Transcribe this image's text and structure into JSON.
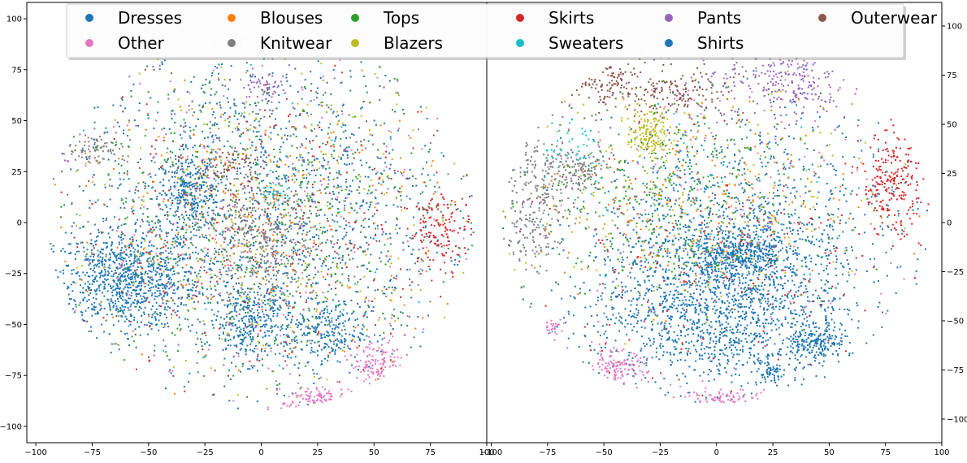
{
  "chart_data": {
    "type": "scatter",
    "legend": {
      "placement": "top",
      "columns": 6,
      "entries": [
        {
          "label": "Dresses",
          "color": "#1f77b4"
        },
        {
          "label": "Blouses",
          "color": "#ff7f0e"
        },
        {
          "label": "Tops",
          "color": "#2ca02c"
        },
        {
          "label": "Skirts",
          "color": "#d62728"
        },
        {
          "label": "Pants",
          "color": "#9467bd"
        },
        {
          "label": "Outerwear",
          "color": "#8c564b"
        },
        {
          "label": "Other",
          "color": "#e377c2"
        },
        {
          "label": "Knitwear",
          "color": "#7f7f7f"
        },
        {
          "label": "Blazers",
          "color": "#bcbd22"
        },
        {
          "label": "Sweaters",
          "color": "#17becf"
        },
        {
          "label": "Shirts",
          "color": "#1f77b4"
        }
      ]
    },
    "panels": [
      {
        "name": "left",
        "y_axis_side": "left",
        "xlim": [
          -104,
          100
        ],
        "ylim": [
          -108,
          108
        ],
        "xticks": [
          -100,
          -75,
          -50,
          -25,
          0,
          25,
          50,
          75,
          100
        ],
        "yticks": [
          -100,
          -75,
          -50,
          -25,
          0,
          25,
          50,
          75,
          100
        ],
        "clusters": [
          {
            "series": "Dresses",
            "cx": -60,
            "cy": -28,
            "sx": 16,
            "sy": 12,
            "n": 900
          },
          {
            "series": "Dresses",
            "cx": -32,
            "cy": 14,
            "sx": 6,
            "sy": 10,
            "n": 260
          },
          {
            "series": "Dresses",
            "cx": -5,
            "cy": -48,
            "sx": 9,
            "sy": 10,
            "n": 320
          },
          {
            "series": "Dresses",
            "cx": 28,
            "cy": -55,
            "sx": 9,
            "sy": 8,
            "n": 220
          },
          {
            "series": "Dresses",
            "cx": 0,
            "cy": 5,
            "sx": 42,
            "sy": 40,
            "n": 1500
          },
          {
            "series": "Other",
            "cx": 52,
            "cy": -70,
            "sx": 6,
            "sy": 6,
            "n": 140
          },
          {
            "series": "Other",
            "cx": 25,
            "cy": -87,
            "sx": 8,
            "sy": 4,
            "n": 140
          },
          {
            "series": "Other",
            "cx": 5,
            "cy": 0,
            "sx": 50,
            "sy": 40,
            "n": 220
          },
          {
            "series": "Skirts",
            "cx": 80,
            "cy": -4,
            "sx": 7,
            "sy": 9,
            "n": 130
          },
          {
            "series": "Skirts",
            "cx": 0,
            "cy": -5,
            "sx": 45,
            "sy": 38,
            "n": 260
          },
          {
            "series": "Knitwear",
            "cx": 0,
            "cy": -10,
            "sx": 12,
            "sy": 12,
            "n": 260
          },
          {
            "series": "Knitwear",
            "cx": -75,
            "cy": 37,
            "sx": 8,
            "sy": 4,
            "n": 90
          },
          {
            "series": "Knitwear",
            "cx": 0,
            "cy": 0,
            "sx": 45,
            "sy": 40,
            "n": 160
          },
          {
            "series": "Outerwear",
            "cx": -15,
            "cy": 28,
            "sx": 8,
            "sy": 5,
            "n": 80
          },
          {
            "series": "Outerwear",
            "cx": 0,
            "cy": 5,
            "sx": 45,
            "sy": 40,
            "n": 200
          },
          {
            "series": "Pants",
            "cx": 0,
            "cy": 66,
            "sx": 5,
            "sy": 4,
            "n": 60
          },
          {
            "series": "Pants",
            "cx": 0,
            "cy": 10,
            "sx": 45,
            "sy": 40,
            "n": 150
          },
          {
            "series": "Tops",
            "cx": 0,
            "cy": 0,
            "sx": 45,
            "sy": 40,
            "n": 500
          },
          {
            "series": "Blouses",
            "cx": 0,
            "cy": 0,
            "sx": 45,
            "sy": 40,
            "n": 300
          },
          {
            "series": "Blazers",
            "cx": 0,
            "cy": 5,
            "sx": 45,
            "sy": 40,
            "n": 300
          },
          {
            "series": "Sweaters",
            "cx": 5,
            "cy": 15,
            "sx": 3,
            "sy": 3,
            "n": 25
          },
          {
            "series": "Sweaters",
            "cx": 0,
            "cy": 0,
            "sx": 45,
            "sy": 40,
            "n": 60
          }
        ]
      },
      {
        "name": "right",
        "y_axis_side": "right",
        "xlim": [
          -102,
          100
        ],
        "ylim": [
          -112,
          112
        ],
        "xticks": [
          -100,
          -75,
          -50,
          -25,
          0,
          25,
          50,
          75,
          100
        ],
        "yticks": [
          -100,
          -75,
          -50,
          -25,
          0,
          25,
          50,
          75,
          100
        ],
        "clusters": [
          {
            "series": "Dresses",
            "cx": 0,
            "cy": -45,
            "sx": 28,
            "sy": 20,
            "n": 1300
          },
          {
            "series": "Dresses",
            "cx": 10,
            "cy": -15,
            "sx": 10,
            "sy": 6,
            "n": 350
          },
          {
            "series": "Dresses",
            "cx": 45,
            "cy": -62,
            "sx": 6,
            "sy": 4,
            "n": 160
          },
          {
            "series": "Dresses",
            "cx": 24,
            "cy": -77,
            "sx": 3,
            "sy": 3,
            "n": 50
          },
          {
            "series": "Dresses",
            "cx": 10,
            "cy": -5,
            "sx": 35,
            "sy": 30,
            "n": 1200
          },
          {
            "series": "Other",
            "cx": -45,
            "cy": -75,
            "sx": 7,
            "sy": 5,
            "n": 140
          },
          {
            "series": "Other",
            "cx": 5,
            "cy": -92,
            "sx": 10,
            "sy": 4,
            "n": 170
          },
          {
            "series": "Other",
            "cx": -72,
            "cy": -53,
            "sx": 2,
            "sy": 2,
            "n": 30
          },
          {
            "series": "Other",
            "cx": 0,
            "cy": 10,
            "sx": 50,
            "sy": 40,
            "n": 160
          },
          {
            "series": "Skirts",
            "cx": 78,
            "cy": 20,
            "sx": 7,
            "sy": 13,
            "n": 240
          },
          {
            "series": "Skirts",
            "cx": 0,
            "cy": -20,
            "sx": 45,
            "sy": 30,
            "n": 200
          },
          {
            "series": "Knitwear",
            "cx": -80,
            "cy": 10,
            "sx": 8,
            "sy": 18,
            "n": 260
          },
          {
            "series": "Knitwear",
            "cx": -62,
            "cy": 27,
            "sx": 8,
            "sy": 5,
            "n": 140
          },
          {
            "series": "Outerwear",
            "cx": -50,
            "cy": 73,
            "sx": 8,
            "sy": 6,
            "n": 110
          },
          {
            "series": "Outerwear",
            "cx": -15,
            "cy": 65,
            "sx": 8,
            "sy": 6,
            "n": 110
          },
          {
            "series": "Outerwear",
            "cx": -30,
            "cy": 65,
            "sx": 20,
            "sy": 8,
            "n": 80
          },
          {
            "series": "Pants",
            "cx": 35,
            "cy": 72,
            "sx": 12,
            "sy": 10,
            "n": 220
          },
          {
            "series": "Pants",
            "cx": 10,
            "cy": 70,
            "sx": 20,
            "sy": 10,
            "n": 60
          },
          {
            "series": "Blazers",
            "cx": -30,
            "cy": 45,
            "sx": 5,
            "sy": 6,
            "n": 160
          },
          {
            "series": "Blazers",
            "cx": -5,
            "cy": 15,
            "sx": 40,
            "sy": 30,
            "n": 200
          },
          {
            "series": "Tops",
            "cx": -20,
            "cy": 10,
            "sx": 30,
            "sy": 25,
            "n": 350
          },
          {
            "series": "Blouses",
            "cx": -10,
            "cy": 10,
            "sx": 35,
            "sy": 25,
            "n": 200
          },
          {
            "series": "Sweaters",
            "cx": -65,
            "cy": 40,
            "sx": 10,
            "sy": 10,
            "n": 40
          },
          {
            "series": "Sweaters",
            "cx": -5,
            "cy": 10,
            "sx": 40,
            "sy": 30,
            "n": 40
          }
        ]
      }
    ]
  }
}
